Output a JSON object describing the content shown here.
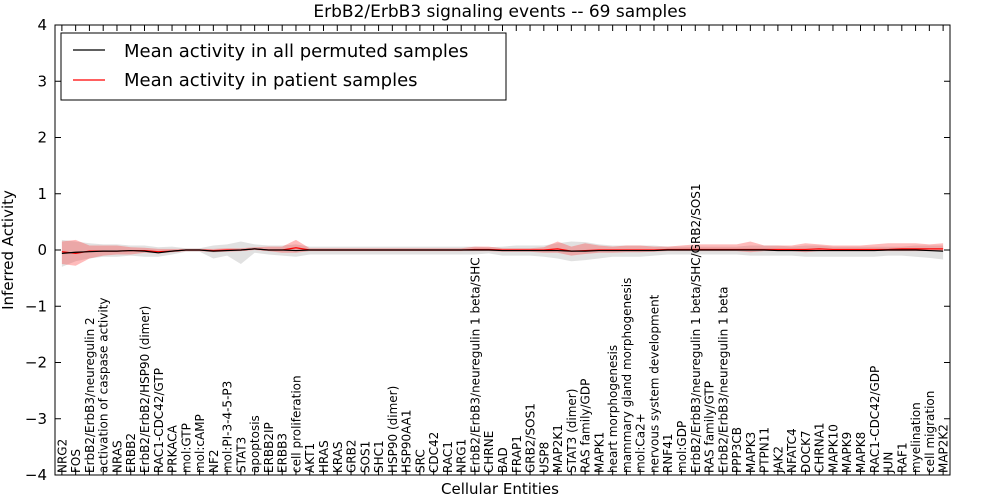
{
  "chart_data": {
    "type": "line",
    "title": "ErbB2/ErbB3 signaling events -- 69 samples",
    "xlabel": "Cellular Entities",
    "ylabel": "Inferred Activity",
    "ylim": [
      -4,
      4
    ],
    "yticks": [
      -4,
      -3,
      -2,
      -1,
      0,
      1,
      2,
      3,
      4
    ],
    "ytick_labels": [
      "−4",
      "−3",
      "−2",
      "−1",
      "0",
      "1",
      "2",
      "3",
      "4"
    ],
    "grid": false,
    "legend_position": "top-left",
    "categories": [
      "NRG2",
      "FOS",
      "ErbB2/ErbB3/neuregulin 2",
      "activation of caspase activity",
      "NRAS",
      "ERBB2",
      "ErbB2/ErbB2/HSP90 (dimer)",
      "RAC1-CDC42/GTP",
      "PRKACA",
      "mol:GTP",
      "mol:cAMP",
      "NF2",
      "mol:PI-3-4-5-P3",
      "STAT3",
      "apoptosis",
      "ERBB2IP",
      "ERBB3",
      "cell proliferation",
      "AKT1",
      "HRAS",
      "KRAS",
      "GRB2",
      "SOS1",
      "SHC1",
      "HSP90 (dimer)",
      "HSP90AA1",
      "SRC",
      "CDC42",
      "RAC1",
      "NRG1",
      "ErbB2/ErbB3/neuregulin 1 beta/SHC",
      "CHRNE",
      "BAD",
      "FRAP1",
      "GRB2/SOS1",
      "USP8",
      "MAP2K1",
      "STAT3 (dimer)",
      "RAS family/GDP",
      "MAPK1",
      "heart morphogenesis",
      "mammary gland morphogenesis",
      "mol:Ca2+",
      "nervous system development",
      "RNF41",
      "mol:GDP",
      "ErbB2/ErbB3/neuregulin 1 beta/SHC/GRB2/SOS1",
      "RAS family/GTP",
      "ErbB2/ErbB3/neuregulin 1 beta",
      "PPP3CB",
      "MAPK3",
      "PTPN11",
      "JAK2",
      "NFATC4",
      "DOCK7",
      "CHRNA1",
      "MAPK10",
      "MAPK9",
      "MAPK8",
      "RAC1-CDC42/GDP",
      "JUN",
      "RAF1",
      "myelination",
      "cell migration",
      "MAP2K2"
    ],
    "series": [
      {
        "name": "Mean activity in all permuted samples",
        "color": "#000000",
        "values": [
          -0.06,
          -0.04,
          -0.03,
          -0.02,
          -0.02,
          -0.01,
          -0.02,
          -0.05,
          -0.02,
          0,
          0,
          -0.02,
          -0.01,
          0,
          0.02,
          0,
          0,
          -0.01,
          0,
          0,
          0,
          0,
          0,
          0,
          0,
          0,
          0,
          0,
          0,
          0,
          0,
          0,
          -0.01,
          -0.01,
          -0.01,
          -0.01,
          -0.01,
          -0.02,
          -0.02,
          -0.01,
          -0.01,
          -0.01,
          -0.01,
          -0.01,
          0,
          0,
          0,
          0,
          0,
          0,
          0,
          0,
          -0.01,
          -0.01,
          -0.01,
          -0.01,
          -0.01,
          -0.01,
          -0.01,
          -0.01,
          0,
          0,
          0,
          -0.01,
          -0.02
        ],
        "band_lower": [
          -0.3,
          -0.2,
          -0.15,
          -0.12,
          -0.12,
          -0.1,
          -0.12,
          -0.12,
          -0.08,
          -0.03,
          -0.03,
          -0.15,
          -0.1,
          -0.25,
          -0.05,
          -0.08,
          -0.1,
          -0.12,
          -0.08,
          -0.08,
          -0.08,
          -0.08,
          -0.08,
          -0.08,
          -0.08,
          -0.08,
          -0.08,
          -0.08,
          -0.08,
          -0.08,
          -0.08,
          -0.06,
          -0.1,
          -0.1,
          -0.1,
          -0.12,
          -0.15,
          -0.2,
          -0.18,
          -0.15,
          -0.12,
          -0.12,
          -0.12,
          -0.1,
          -0.08,
          -0.08,
          -0.08,
          -0.08,
          -0.08,
          -0.08,
          -0.1,
          -0.1,
          -0.1,
          -0.1,
          -0.12,
          -0.12,
          -0.12,
          -0.12,
          -0.12,
          -0.12,
          -0.1,
          -0.1,
          -0.12,
          -0.14,
          -0.17
        ],
        "band_upper": [
          0.18,
          0.15,
          0.12,
          0.1,
          0.1,
          0.08,
          0.08,
          0.05,
          0.06,
          0.03,
          0.03,
          0.08,
          0.1,
          0.15,
          0.1,
          0.08,
          0.08,
          0.1,
          0.06,
          0.06,
          0.06,
          0.06,
          0.06,
          0.06,
          0.06,
          0.06,
          0.06,
          0.06,
          0.06,
          0.06,
          0.06,
          0.05,
          0.06,
          0.08,
          0.08,
          0.08,
          0.12,
          0.15,
          0.14,
          0.1,
          0.08,
          0.08,
          0.08,
          0.08,
          0.06,
          0.06,
          0.06,
          0.06,
          0.06,
          0.06,
          0.08,
          0.08,
          0.08,
          0.06,
          0.08,
          0.08,
          0.06,
          0.06,
          0.06,
          0.06,
          0.06,
          0.06,
          0.08,
          0.08,
          0.08
        ]
      },
      {
        "name": "Mean activity in patient samples",
        "color": "#ff0000",
        "values": [
          -0.03,
          -0.06,
          -0.02,
          -0.02,
          -0.02,
          -0.01,
          -0.01,
          -0.03,
          -0.02,
          0,
          0,
          -0.01,
          0,
          0,
          0.02,
          0,
          0,
          0.04,
          0,
          0,
          0,
          0,
          0,
          0,
          0,
          0,
          0,
          0,
          0,
          0,
          0.01,
          0.01,
          0,
          0,
          0,
          0,
          0.02,
          -0.02,
          -0.01,
          0,
          0,
          0,
          0,
          0,
          0.01,
          0.01,
          0.01,
          0.01,
          0.01,
          0.01,
          0.01,
          0.01,
          0.01,
          0.01,
          0.01,
          0.02,
          0.01,
          0.01,
          0.01,
          0.01,
          0.01,
          0.02,
          0.02,
          0.02,
          0.02
        ],
        "band_lower": [
          -0.25,
          -0.28,
          -0.15,
          -0.1,
          -0.08,
          -0.08,
          -0.05,
          -0.06,
          -0.04,
          -0.02,
          -0.02,
          -0.04,
          -0.03,
          -0.02,
          0,
          -0.02,
          -0.05,
          -0.05,
          -0.02,
          -0.02,
          -0.02,
          -0.02,
          -0.02,
          -0.02,
          -0.02,
          -0.02,
          -0.02,
          -0.02,
          -0.02,
          -0.02,
          -0.02,
          -0.02,
          -0.03,
          -0.03,
          -0.03,
          -0.05,
          -0.05,
          -0.1,
          -0.07,
          -0.05,
          -0.05,
          -0.04,
          -0.04,
          -0.03,
          -0.02,
          -0.02,
          -0.02,
          -0.02,
          -0.02,
          -0.02,
          -0.04,
          -0.02,
          -0.02,
          -0.02,
          -0.04,
          -0.02,
          -0.02,
          -0.02,
          -0.02,
          -0.02,
          -0.02,
          -0.02,
          -0.02,
          -0.02,
          -0.02
        ],
        "band_upper": [
          0.15,
          0.18,
          0.08,
          0.08,
          0.08,
          0.05,
          0.04,
          0.02,
          0.02,
          0.02,
          0.02,
          0.02,
          0.03,
          0.03,
          0.05,
          0.06,
          0.06,
          0.18,
          0.03,
          0.03,
          0.03,
          0.03,
          0.03,
          0.03,
          0.03,
          0.03,
          0.03,
          0.03,
          0.03,
          0.03,
          0.06,
          0.06,
          0.03,
          0.03,
          0.03,
          0.05,
          0.15,
          0.06,
          0.12,
          0.08,
          0.06,
          0.08,
          0.08,
          0.06,
          0.06,
          0.08,
          0.1,
          0.1,
          0.1,
          0.1,
          0.15,
          0.08,
          0.08,
          0.08,
          0.12,
          0.1,
          0.08,
          0.08,
          0.08,
          0.1,
          0.12,
          0.12,
          0.12,
          0.1,
          0.12
        ]
      }
    ]
  }
}
